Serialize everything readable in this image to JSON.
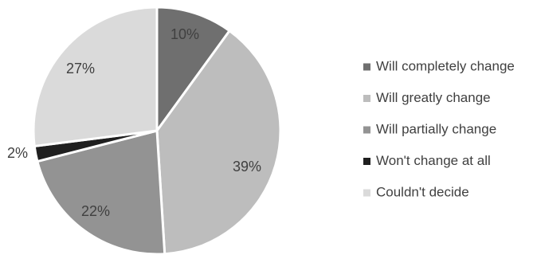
{
  "chart_data": {
    "type": "pie",
    "title": "",
    "categories": [
      "Will completely change",
      "Will greatly change",
      "Will partially change",
      "Won't change at all",
      "Couldn't decide"
    ],
    "values": [
      10,
      39,
      22,
      2,
      27
    ],
    "labels": [
      "10%",
      "39%",
      "22%",
      "2%",
      "27%"
    ],
    "colors": [
      "#6f6f6f",
      "#bdbdbd",
      "#939393",
      "#1f1f1f",
      "#dadada"
    ],
    "legend": "right"
  }
}
